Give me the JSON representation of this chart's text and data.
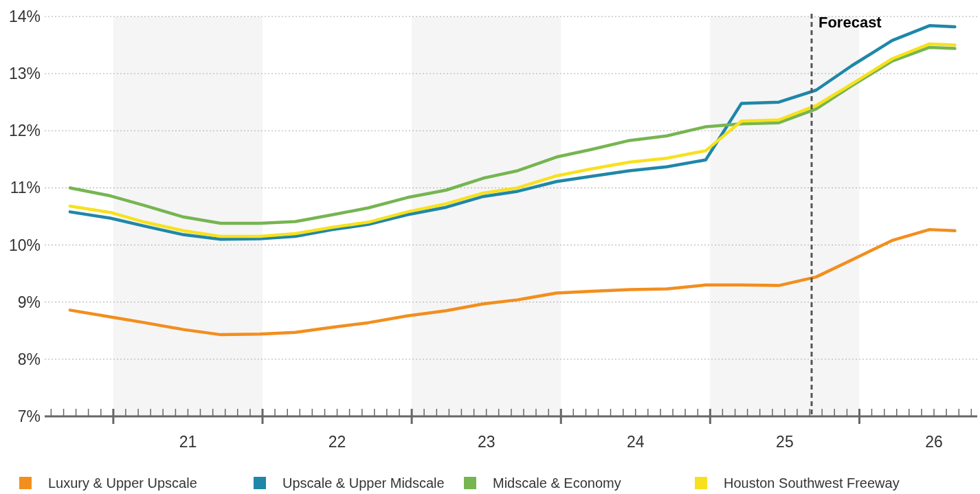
{
  "chart_data": {
    "type": "line",
    "x": [
      20.21,
      20.48,
      20.71,
      20.97,
      21.22,
      21.48,
      21.72,
      21.97,
      22.21,
      22.47,
      22.73,
      22.98,
      23.21,
      23.47,
      23.7,
      23.96,
      24.21,
      24.47,
      24.71,
      24.96,
      25.21,
      25.45,
      25.72,
      25.97,
      26.14
    ],
    "series": [
      {
        "name": "Luxury & Upper Upscale",
        "color": "#f28e1e",
        "values": [
          8.86,
          8.74,
          8.64,
          8.52,
          8.43,
          8.44,
          8.47,
          8.56,
          8.64,
          8.76,
          8.85,
          8.97,
          9.04,
          9.16,
          9.19,
          9.22,
          9.23,
          9.3,
          9.3,
          9.29,
          9.44,
          9.74,
          10.08,
          10.27,
          10.25
        ]
      },
      {
        "name": "Upscale & Upper Midscale",
        "color": "#1f87a8",
        "values": [
          10.58,
          10.47,
          10.33,
          10.18,
          10.1,
          10.11,
          10.15,
          10.27,
          10.36,
          10.53,
          10.66,
          10.85,
          10.94,
          11.11,
          11.2,
          11.3,
          11.37,
          11.49,
          12.48,
          12.5,
          12.71,
          13.14,
          13.58,
          13.84,
          13.82
        ]
      },
      {
        "name": "Midscale & Economy",
        "color": "#76b551",
        "values": [
          11.0,
          10.86,
          10.69,
          10.49,
          10.38,
          10.38,
          10.41,
          10.53,
          10.65,
          10.83,
          10.96,
          11.17,
          11.3,
          11.54,
          11.67,
          11.83,
          11.91,
          12.07,
          12.12,
          12.14,
          12.38,
          12.79,
          13.22,
          13.46,
          13.44
        ]
      },
      {
        "name": "Houston Southwest Freeway",
        "color": "#f7e11e",
        "values": [
          10.68,
          10.57,
          10.4,
          10.25,
          10.15,
          10.15,
          10.2,
          10.31,
          10.4,
          10.58,
          10.72,
          10.91,
          11.0,
          11.21,
          11.33,
          11.45,
          11.52,
          11.65,
          12.17,
          12.19,
          12.44,
          12.82,
          13.26,
          13.52,
          13.5
        ]
      }
    ],
    "xlim": [
      20.04,
      26.29
    ],
    "xticks": [
      {
        "value": 20.083,
        "label": null
      },
      {
        "value": 20.167,
        "label": null
      },
      {
        "value": 20.25,
        "label": null
      },
      {
        "value": 20.333,
        "label": null
      },
      {
        "value": 20.417,
        "label": null
      },
      {
        "value": 20.5,
        "label": null
      },
      {
        "value": 20.583,
        "label": null
      },
      {
        "value": 20.667,
        "label": null
      },
      {
        "value": 20.75,
        "label": null
      },
      {
        "value": 20.833,
        "label": null
      },
      {
        "value": 20.917,
        "label": null
      },
      21,
      {
        "value": 21.083,
        "label": null
      },
      {
        "value": 21.167,
        "label": null
      },
      {
        "value": 21.25,
        "label": null
      },
      {
        "value": 21.333,
        "label": null
      },
      {
        "value": 21.417,
        "label": null
      },
      {
        "value": 21.5,
        "label": null
      },
      {
        "value": 21.583,
        "label": null
      },
      {
        "value": 21.667,
        "label": null
      },
      {
        "value": 21.75,
        "label": null
      },
      {
        "value": 21.833,
        "label": null
      },
      {
        "value": 21.917,
        "label": null
      },
      22,
      {
        "value": 22.083,
        "label": null
      },
      {
        "value": 22.167,
        "label": null
      },
      {
        "value": 22.25,
        "label": null
      },
      {
        "value": 22.333,
        "label": null
      },
      {
        "value": 22.417,
        "label": null
      },
      {
        "value": 22.5,
        "label": null
      },
      {
        "value": 22.583,
        "label": null
      },
      {
        "value": 22.667,
        "label": null
      },
      {
        "value": 22.75,
        "label": null
      },
      {
        "value": 22.833,
        "label": null
      },
      {
        "value": 22.917,
        "label": null
      },
      23,
      {
        "value": 23.083,
        "label": null
      },
      {
        "value": 23.167,
        "label": null
      },
      {
        "value": 23.25,
        "label": null
      },
      {
        "value": 23.333,
        "label": null
      },
      {
        "value": 23.417,
        "label": null
      },
      {
        "value": 23.5,
        "label": null
      },
      {
        "value": 23.583,
        "label": null
      },
      {
        "value": 23.667,
        "label": null
      },
      {
        "value": 23.75,
        "label": null
      },
      {
        "value": 23.833,
        "label": null
      },
      {
        "value": 23.917,
        "label": null
      },
      24,
      {
        "value": 24.083,
        "label": null
      },
      {
        "value": 24.167,
        "label": null
      },
      {
        "value": 24.25,
        "label": null
      },
      {
        "value": 24.333,
        "label": null
      },
      {
        "value": 24.417,
        "label": null
      },
      {
        "value": 24.5,
        "label": null
      },
      {
        "value": 24.583,
        "label": null
      },
      {
        "value": 24.667,
        "label": null
      },
      {
        "value": 24.75,
        "label": null
      },
      {
        "value": 24.833,
        "label": null
      },
      {
        "value": 24.917,
        "label": null
      },
      25,
      {
        "value": 25.083,
        "label": null
      },
      {
        "value": 25.167,
        "label": null
      },
      {
        "value": 25.25,
        "label": null
      },
      {
        "value": 25.333,
        "label": null
      },
      {
        "value": 25.417,
        "label": null
      },
      {
        "value": 25.5,
        "label": null
      },
      {
        "value": 25.583,
        "label": null
      },
      {
        "value": 25.667,
        "label": null
      },
      {
        "value": 25.75,
        "label": null
      },
      {
        "value": 25.833,
        "label": null
      },
      {
        "value": 25.917,
        "label": null
      },
      26,
      {
        "value": 26.083,
        "label": null
      },
      {
        "value": 26.167,
        "label": null
      },
      {
        "value": 26.25,
        "label": null
      }
    ],
    "ylim": [
      7,
      14
    ],
    "yticks": [
      {
        "value": 7,
        "label": "7%"
      },
      {
        "value": 8,
        "label": "8%"
      },
      {
        "value": 9,
        "label": "9%"
      },
      {
        "value": 10,
        "label": "10%"
      },
      {
        "value": 11,
        "label": "11%"
      },
      {
        "value": 12,
        "label": "12%"
      },
      {
        "value": 13,
        "label": "13%"
      },
      {
        "value": 14,
        "label": "14%"
      }
    ],
    "grid": "y",
    "legend": "bottom",
    "marker": "none",
    "line_style": "solid",
    "bands": [
      {
        "axis": "x",
        "from": 20.5,
        "to": 21.5,
        "label": null,
        "color": "#f5f5f5"
      },
      {
        "axis": "x",
        "from": 22.5,
        "to": 23.5,
        "label": null,
        "color": "#f5f5f5"
      },
      {
        "axis": "x",
        "from": 24.5,
        "to": 25.5,
        "label": null,
        "color": "#f5f5f5"
      }
    ],
    "ref_lines": [
      {
        "axis": "x",
        "value": 25.18,
        "label": "Forecast",
        "color": "#555555",
        "line_style": "dashed"
      }
    ]
  }
}
